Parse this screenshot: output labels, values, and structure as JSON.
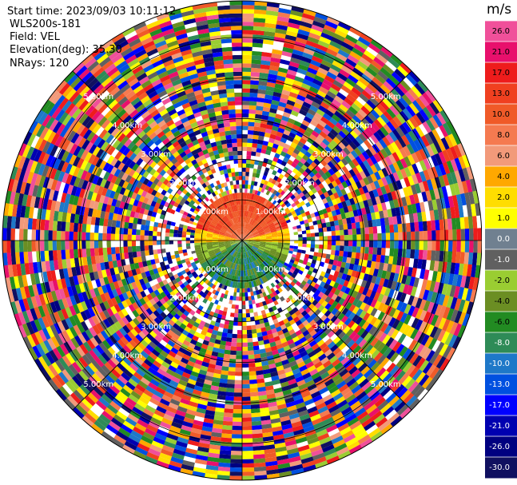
{
  "info": {
    "start_time": "Start time: 2023/09/03 10:11:12",
    "instrument": "WLS200s-181",
    "field": "Field: VEL",
    "elevation": "Elevation(deg): 35.30",
    "nrays": "NRays: 120"
  },
  "chart_data": {
    "type": "heatmap",
    "projection": "polar-ppi",
    "field": "VEL",
    "units": "m/s",
    "nrays": 120,
    "range_rings_km": [
      1.0,
      2.0,
      3.0,
      4.0,
      5.0
    ],
    "ring_labels": [
      "1.00km",
      "2.00km",
      "3.00km",
      "4.00km",
      "5.00km"
    ],
    "max_range_km": 5.9,
    "near_field_pattern": {
      "description_values_m_s": "northern half warm (2 to 17), central band yellow (2 to 4), southern half green/blue (-2 to -10)"
    },
    "colorbar": {
      "title": "m/s",
      "ticks": [
        "26.0",
        "21.0",
        "17.0",
        "13.0",
        "10.0",
        "8.0",
        "6.0",
        "4.0",
        "2.0",
        "1.0",
        "0.0",
        "-1.0",
        "-2.0",
        "-4.0",
        "-6.0",
        "-8.0",
        "-10.0",
        "-13.0",
        "-17.0",
        "-21.0",
        "-26.0",
        "-30.0"
      ],
      "colors": [
        "#f0509a",
        "#e8106c",
        "#ee1c1c",
        "#f04020",
        "#f05a28",
        "#f57a50",
        "#f29a7a",
        "#ffa800",
        "#ffdd00",
        "#ffff00",
        "#708090",
        "#606060",
        "#9acd32",
        "#6b8e23",
        "#228b22",
        "#2e8b57",
        "#1e78c8",
        "#0050e0",
        "#0000ff",
        "#0000b0",
        "#000080",
        "#101060"
      ]
    }
  }
}
